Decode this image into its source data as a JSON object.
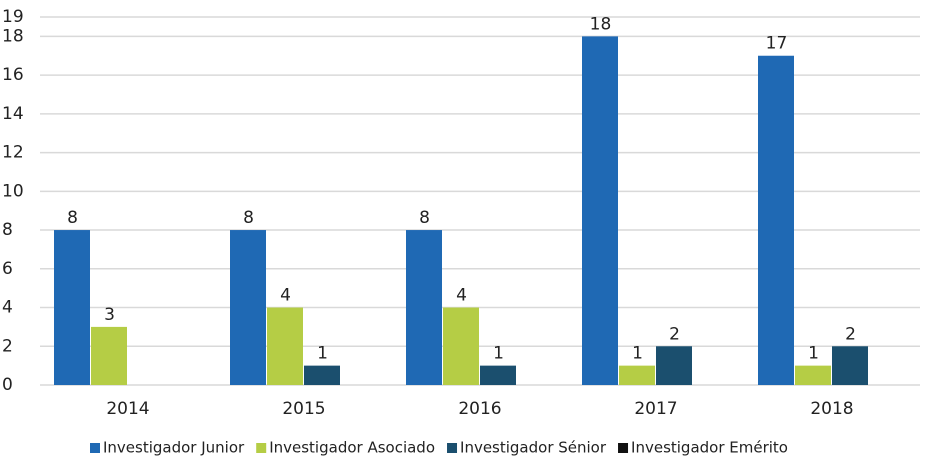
{
  "chart_data": {
    "type": "bar",
    "categories": [
      "2014",
      "2015",
      "2016",
      "2017",
      "2018"
    ],
    "series": [
      {
        "name": "Investigador Junior",
        "color": "#1f69b4",
        "values": [
          8,
          8,
          8,
          18,
          17
        ]
      },
      {
        "name": "Investigador Asociado",
        "color": "#b5cd45",
        "values": [
          3,
          4,
          4,
          1,
          1
        ]
      },
      {
        "name": "Investigador Sénior",
        "color": "#1b4f6e",
        "values": [
          null,
          1,
          1,
          2,
          2
        ]
      },
      {
        "name": "Investigador Emérito",
        "color": "#111111",
        "values": [
          null,
          null,
          null,
          null,
          null
        ]
      }
    ],
    "ylim": [
      0,
      19
    ],
    "yticks": [
      0,
      2,
      4,
      6,
      8,
      10,
      12,
      14,
      16,
      18,
      19
    ],
    "grid": true,
    "legend": "bottom"
  }
}
